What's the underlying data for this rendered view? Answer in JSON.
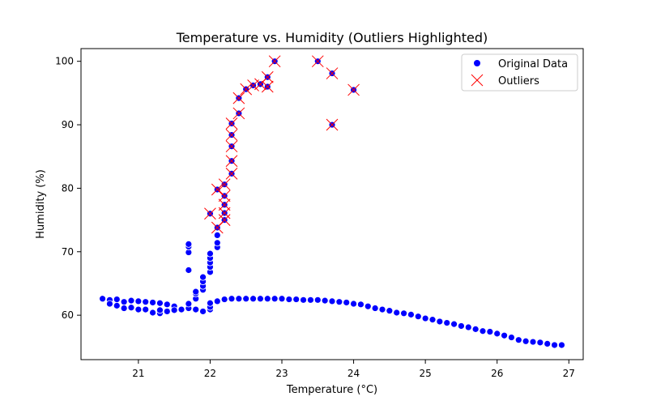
{
  "chart_data": {
    "type": "scatter",
    "title": "Temperature vs. Humidity (Outliers Highlighted)",
    "xlabel": "Temperature (°C)",
    "ylabel": "Humidity (%)",
    "xlim": [
      20.2,
      27.2
    ],
    "ylim": [
      53.0,
      102.0
    ],
    "xticks": [
      21,
      22,
      23,
      24,
      25,
      26,
      27
    ],
    "yticks": [
      60,
      70,
      80,
      90,
      100
    ],
    "grid": false,
    "legend": {
      "position": "top-right",
      "entries": [
        "Original Data",
        "Outliers"
      ]
    },
    "colors": {
      "original": "#0000ff",
      "outlier": "#ff0000"
    },
    "series": [
      {
        "name": "Original Data",
        "marker": "circle",
        "points": [
          [
            20.5,
            62.6
          ],
          [
            20.6,
            62.4
          ],
          [
            20.6,
            61.8
          ],
          [
            20.7,
            62.5
          ],
          [
            20.7,
            61.5
          ],
          [
            20.8,
            62.1
          ],
          [
            20.8,
            61.1
          ],
          [
            20.9,
            62.3
          ],
          [
            20.9,
            61.2
          ],
          [
            21.0,
            62.2
          ],
          [
            21.0,
            60.9
          ],
          [
            21.1,
            62.1
          ],
          [
            21.1,
            60.9
          ],
          [
            21.2,
            62.0
          ],
          [
            21.2,
            60.4
          ],
          [
            21.3,
            61.9
          ],
          [
            21.3,
            60.3
          ],
          [
            21.3,
            60.8
          ],
          [
            21.4,
            61.7
          ],
          [
            21.4,
            60.6
          ],
          [
            21.5,
            61.4
          ],
          [
            21.5,
            60.8
          ],
          [
            21.6,
            60.9
          ],
          [
            21.7,
            61.1
          ],
          [
            21.7,
            61.8
          ],
          [
            21.7,
            67.1
          ],
          [
            21.7,
            69.9
          ],
          [
            21.7,
            70.8
          ],
          [
            21.7,
            71.2
          ],
          [
            21.8,
            60.9
          ],
          [
            21.8,
            62.6
          ],
          [
            21.8,
            63.4
          ],
          [
            21.8,
            63.7
          ],
          [
            21.9,
            60.6
          ],
          [
            21.9,
            64.0
          ],
          [
            21.9,
            64.6
          ],
          [
            21.9,
            65.3
          ],
          [
            21.9,
            66.0
          ],
          [
            22.0,
            60.9
          ],
          [
            22.0,
            61.3
          ],
          [
            22.0,
            61.9
          ],
          [
            22.0,
            66.8
          ],
          [
            22.0,
            67.6
          ],
          [
            22.0,
            68.3
          ],
          [
            22.0,
            69.0
          ],
          [
            22.0,
            69.7
          ],
          [
            22.0,
            76.0
          ],
          [
            22.1,
            62.2
          ],
          [
            22.1,
            70.7
          ],
          [
            22.1,
            71.4
          ],
          [
            22.1,
            72.6
          ],
          [
            22.1,
            73.8
          ],
          [
            22.1,
            79.8
          ],
          [
            22.2,
            62.5
          ],
          [
            22.2,
            75.0
          ],
          [
            22.2,
            76.1
          ],
          [
            22.2,
            77.4
          ],
          [
            22.2,
            78.8
          ],
          [
            22.2,
            80.6
          ],
          [
            22.3,
            62.6
          ],
          [
            22.3,
            82.3
          ],
          [
            22.3,
            84.3
          ],
          [
            22.3,
            86.6
          ],
          [
            22.3,
            88.4
          ],
          [
            22.3,
            90.2
          ],
          [
            22.4,
            62.6
          ],
          [
            22.4,
            91.8
          ],
          [
            22.4,
            94.2
          ],
          [
            22.5,
            62.6
          ],
          [
            22.5,
            95.6
          ],
          [
            22.6,
            62.6
          ],
          [
            22.6,
            96.2
          ],
          [
            22.7,
            62.6
          ],
          [
            22.7,
            96.4
          ],
          [
            22.8,
            62.6
          ],
          [
            22.8,
            96.0
          ],
          [
            22.8,
            97.5
          ],
          [
            22.9,
            62.6
          ],
          [
            22.9,
            100.0
          ],
          [
            23.0,
            62.6
          ],
          [
            23.1,
            62.5
          ],
          [
            23.2,
            62.5
          ],
          [
            23.3,
            62.4
          ],
          [
            23.4,
            62.4
          ],
          [
            23.5,
            62.4
          ],
          [
            23.5,
            100.0
          ],
          [
            23.6,
            62.3
          ],
          [
            23.7,
            62.2
          ],
          [
            23.7,
            98.1
          ],
          [
            23.7,
            90.0
          ],
          [
            23.8,
            62.1
          ],
          [
            23.9,
            62.0
          ],
          [
            24.0,
            61.8
          ],
          [
            24.0,
            95.5
          ],
          [
            24.1,
            61.7
          ],
          [
            24.2,
            61.4
          ],
          [
            24.3,
            61.1
          ],
          [
            24.4,
            60.9
          ],
          [
            24.5,
            60.7
          ],
          [
            24.6,
            60.4
          ],
          [
            24.7,
            60.3
          ],
          [
            24.8,
            60.1
          ],
          [
            24.9,
            59.8
          ],
          [
            25.0,
            59.5
          ],
          [
            25.1,
            59.3
          ],
          [
            25.2,
            59.0
          ],
          [
            25.3,
            58.8
          ],
          [
            25.4,
            58.6
          ],
          [
            25.5,
            58.3
          ],
          [
            25.6,
            58.1
          ],
          [
            25.7,
            57.8
          ],
          [
            25.8,
            57.5
          ],
          [
            25.9,
            57.4
          ],
          [
            26.0,
            57.1
          ],
          [
            26.1,
            56.8
          ],
          [
            26.2,
            56.5
          ],
          [
            26.3,
            56.1
          ],
          [
            26.4,
            55.9
          ],
          [
            26.5,
            55.8
          ],
          [
            26.6,
            55.7
          ],
          [
            26.7,
            55.5
          ],
          [
            26.8,
            55.3
          ],
          [
            26.9,
            55.3
          ]
        ]
      },
      {
        "name": "Outliers",
        "marker": "x",
        "points": [
          [
            22.0,
            76.0
          ],
          [
            22.1,
            73.8
          ],
          [
            22.1,
            79.8
          ],
          [
            22.2,
            75.0
          ],
          [
            22.2,
            76.1
          ],
          [
            22.2,
            77.4
          ],
          [
            22.2,
            78.8
          ],
          [
            22.2,
            80.6
          ],
          [
            22.3,
            82.3
          ],
          [
            22.3,
            84.3
          ],
          [
            22.3,
            86.6
          ],
          [
            22.3,
            88.4
          ],
          [
            22.3,
            90.2
          ],
          [
            22.4,
            91.8
          ],
          [
            22.4,
            94.2
          ],
          [
            22.5,
            95.6
          ],
          [
            22.6,
            96.2
          ],
          [
            22.7,
            96.4
          ],
          [
            22.8,
            96.0
          ],
          [
            22.8,
            97.5
          ],
          [
            22.9,
            100.0
          ],
          [
            23.5,
            100.0
          ],
          [
            23.7,
            98.1
          ],
          [
            23.7,
            90.0
          ],
          [
            24.0,
            95.5
          ]
        ]
      }
    ]
  }
}
